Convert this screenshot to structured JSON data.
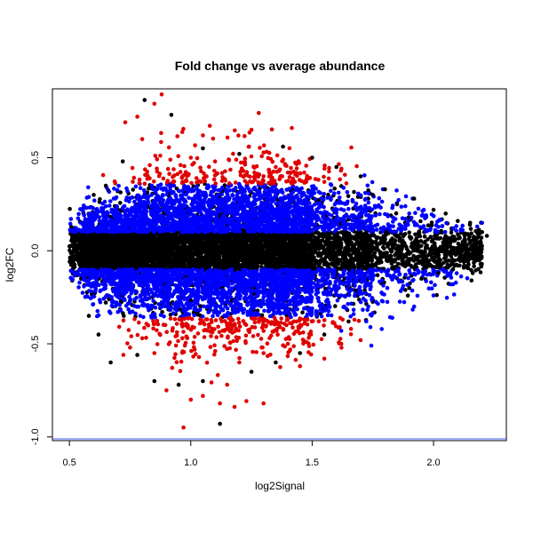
{
  "chart_data": {
    "type": "scatter",
    "title": "Fold change vs average abundance",
    "xlabel": "log2Signal",
    "ylabel": "log2FC",
    "xlim": [
      0.43,
      2.3
    ],
    "ylim": [
      -1.02,
      0.87
    ],
    "xticks": [
      0.5,
      1.0,
      1.5,
      2.0
    ],
    "xtick_labels": [
      "0.5",
      "1.0",
      "1.5",
      "2.0"
    ],
    "yticks": [
      -1.0,
      -0.5,
      0.0,
      0.5
    ],
    "ytick_labels": [
      "-1.0",
      "-0.5",
      "0.0",
      "0.5"
    ],
    "grid": false,
    "legend": "none",
    "reference_line": {
      "y": -1.02,
      "color": "#4060ff"
    },
    "colors": {
      "not_significant": "#000000",
      "moderate": "#0000ff",
      "large": "#e00000"
    },
    "series": [
      {
        "color": "#000000",
        "description_note": "",
        "points": [
          [
            0.81,
            0.81
          ],
          [
            0.72,
            0.48
          ],
          [
            0.65,
            0.35
          ],
          [
            0.6,
            0.3
          ],
          [
            1.12,
            -0.93
          ],
          [
            0.67,
            -0.6
          ],
          [
            0.62,
            -0.45
          ],
          [
            0.58,
            -0.35
          ],
          [
            0.78,
            -0.56
          ],
          [
            0.92,
            0.73
          ],
          [
            1.05,
            0.55
          ],
          [
            1.2,
            0.52
          ],
          [
            1.38,
            0.56
          ],
          [
            1.5,
            0.5
          ],
          [
            1.6,
            0.45
          ],
          [
            1.7,
            0.4
          ],
          [
            1.8,
            0.33
          ],
          [
            1.92,
            0.28
          ],
          [
            2.0,
            0.22
          ],
          [
            2.05,
            0.2
          ],
          [
            2.1,
            0.16
          ],
          [
            2.15,
            0.14
          ],
          [
            2.2,
            0.1
          ],
          [
            2.22,
            0.08
          ],
          [
            2.18,
            0.02
          ],
          [
            2.12,
            -0.05
          ],
          [
            2.08,
            -0.1
          ],
          [
            2.02,
            -0.12
          ],
          [
            1.95,
            -0.15
          ],
          [
            2.1,
            -0.08
          ],
          [
            1.9,
            -0.2
          ],
          [
            1.85,
            0.25
          ],
          [
            1.75,
            0.3
          ],
          [
            1.25,
            -0.65
          ],
          [
            1.35,
            -0.6
          ],
          [
            1.05,
            -0.7
          ],
          [
            0.95,
            -0.72
          ],
          [
            0.85,
            -0.7
          ],
          [
            1.45,
            -0.55
          ],
          [
            1.55,
            -0.45
          ],
          [
            1.65,
            -0.38
          ]
        ]
      },
      {
        "color": "#0000ff",
        "points": [
          [
            2.18,
            0.13
          ],
          [
            2.2,
            0.15
          ],
          [
            2.08,
            -0.18
          ],
          [
            2.0,
            -0.24
          ],
          [
            1.92,
            -0.3
          ],
          [
            1.83,
            -0.36
          ],
          [
            1.74,
            -0.41
          ],
          [
            1.62,
            -0.43
          ],
          [
            1.9,
            0.2
          ],
          [
            1.96,
            0.22
          ],
          [
            1.83,
            0.23
          ]
        ]
      },
      {
        "color": "#e00000",
        "points": [
          [
            0.88,
            0.84
          ],
          [
            0.85,
            0.79
          ],
          [
            1.28,
            0.74
          ],
          [
            1.25,
            0.65
          ],
          [
            1.05,
            0.62
          ],
          [
            0.78,
            0.72
          ],
          [
            0.73,
            0.69
          ],
          [
            0.97,
            -0.95
          ],
          [
            1.12,
            -0.82
          ],
          [
            1.3,
            -0.82
          ],
          [
            0.9,
            -0.75
          ],
          [
            1.0,
            -0.8
          ],
          [
            1.05,
            -0.78
          ],
          [
            1.15,
            -0.72
          ],
          [
            1.45,
            -0.62
          ],
          [
            1.55,
            -0.58
          ],
          [
            1.62,
            -0.5
          ],
          [
            1.7,
            -0.48
          ],
          [
            1.66,
            -0.42
          ],
          [
            1.55,
            0.37
          ],
          [
            1.4,
            0.42
          ],
          [
            1.35,
            0.45
          ],
          [
            1.0,
            0.5
          ],
          [
            1.1,
            0.48
          ],
          [
            0.8,
            0.6
          ],
          [
            0.75,
            -0.52
          ],
          [
            0.8,
            -0.47
          ],
          [
            0.85,
            -0.55
          ],
          [
            1.2,
            -0.6
          ],
          [
            1.3,
            -0.55
          ],
          [
            1.4,
            -0.5
          ]
        ]
      }
    ]
  }
}
